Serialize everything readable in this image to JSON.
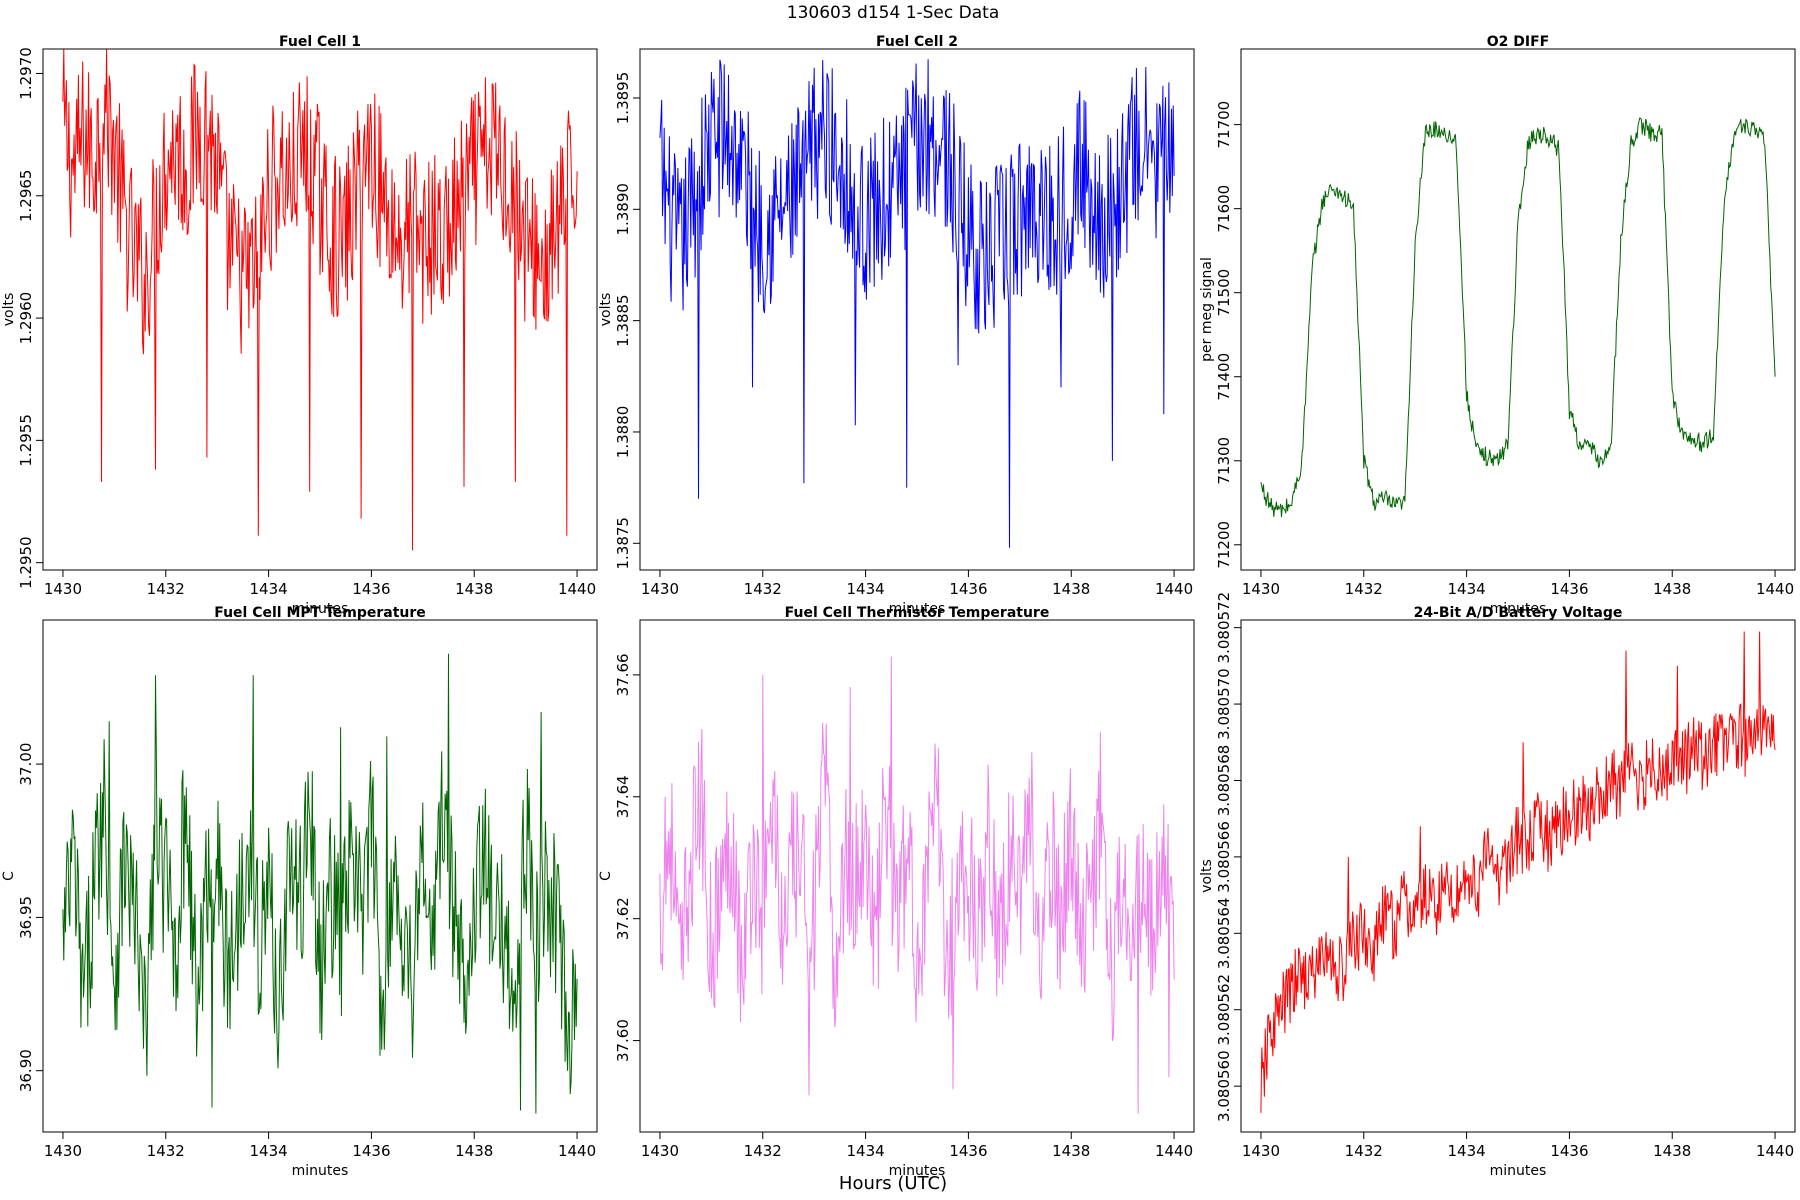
{
  "suptitle": "130603   d154   1-Sec Data",
  "footer": "Hours (UTC)",
  "chart_data": [
    {
      "type": "line",
      "title": "Fuel Cell 1",
      "xlabel": "minutes",
      "ylabel": "volts",
      "color": "#ff0000",
      "xlim": [
        1430,
        1440
      ],
      "ylim": [
        1.29497,
        1.2971
      ],
      "xticks": [
        "1430",
        "1432",
        "1434",
        "1436",
        "1438",
        "1440"
      ],
      "yticks": [
        "1.2950",
        "1.2955",
        "1.2960",
        "1.2965",
        "1.2970"
      ],
      "x": [
        1430.0,
        1430.2,
        1430.4,
        1430.6,
        1430.8,
        1431.0,
        1431.2,
        1431.4,
        1431.6,
        1431.8,
        1432.0,
        1432.2,
        1432.4,
        1432.6,
        1432.8,
        1433.0,
        1433.2,
        1433.4,
        1433.6,
        1433.8,
        1434.0,
        1434.2,
        1434.4,
        1434.6,
        1434.8,
        1435.0,
        1435.2,
        1435.4,
        1435.6,
        1435.8,
        1436.0,
        1436.2,
        1436.4,
        1436.6,
        1436.8,
        1437.0,
        1437.2,
        1437.4,
        1437.6,
        1437.8,
        1438.0,
        1438.2,
        1438.4,
        1438.6,
        1438.8,
        1439.0,
        1439.2,
        1439.4,
        1439.6,
        1439.8,
        1440.0
      ],
      "values": [
        1.2968,
        1.2966,
        1.29675,
        1.29665,
        1.2969,
        1.2967,
        1.2964,
        1.29625,
        1.29615,
        1.2964,
        1.29665,
        1.2967,
        1.2966,
        1.29675,
        1.2968,
        1.2966,
        1.2963,
        1.2962,
        1.29615,
        1.29625,
        1.2965,
        1.2966,
        1.29655,
        1.29665,
        1.2967,
        1.2965,
        1.29635,
        1.2963,
        1.2964,
        1.2966,
        1.2967,
        1.2965,
        1.2964,
        1.2963,
        1.2964,
        1.2963,
        1.29635,
        1.2963,
        1.2964,
        1.2965,
        1.2966,
        1.29665,
        1.2967,
        1.2966,
        1.2965,
        1.2963,
        1.29625,
        1.2962,
        1.29635,
        1.2965,
        1.2966
      ],
      "spikes": [
        [
          1430.75,
          1.29533
        ],
        [
          1431.8,
          1.29538
        ],
        [
          1432.8,
          1.29543
        ],
        [
          1433.8,
          1.29511
        ],
        [
          1434.8,
          1.29529
        ],
        [
          1435.8,
          1.29518
        ],
        [
          1436.8,
          1.29505
        ],
        [
          1437.8,
          1.29531
        ],
        [
          1438.8,
          1.29533
        ],
        [
          1439.8,
          1.29511
        ]
      ]
    },
    {
      "type": "line",
      "title": "Fuel Cell 2",
      "xlabel": "minutes",
      "ylabel": "volts",
      "color": "#0000ff",
      "xlim": [
        1430,
        1440
      ],
      "ylim": [
        1.38738,
        1.38972
      ],
      "xticks": [
        "1430",
        "1432",
        "1434",
        "1436",
        "1438",
        "1440"
      ],
      "yticks": [
        "1.3875",
        "1.3880",
        "1.3885",
        "1.3890",
        "1.3895"
      ],
      "x": [
        1430.0,
        1430.2,
        1430.4,
        1430.6,
        1430.8,
        1431.0,
        1431.2,
        1431.4,
        1431.6,
        1431.8,
        1432.0,
        1432.2,
        1432.4,
        1432.6,
        1432.8,
        1433.0,
        1433.2,
        1433.4,
        1433.6,
        1433.8,
        1434.0,
        1434.2,
        1434.4,
        1434.6,
        1434.8,
        1435.0,
        1435.2,
        1435.4,
        1435.6,
        1435.8,
        1436.0,
        1436.2,
        1436.4,
        1436.6,
        1436.8,
        1437.0,
        1437.2,
        1437.4,
        1437.6,
        1437.8,
        1438.0,
        1438.2,
        1438.4,
        1438.6,
        1438.8,
        1439.0,
        1439.2,
        1439.4,
        1439.6,
        1439.8,
        1440.0
      ],
      "values": [
        1.3892,
        1.38895,
        1.3888,
        1.389,
        1.38915,
        1.3893,
        1.38935,
        1.3893,
        1.3892,
        1.389,
        1.3889,
        1.38895,
        1.389,
        1.38905,
        1.38915,
        1.3893,
        1.38935,
        1.38925,
        1.3892,
        1.389,
        1.38895,
        1.389,
        1.38905,
        1.3891,
        1.3892,
        1.3893,
        1.38935,
        1.3893,
        1.38925,
        1.389,
        1.3889,
        1.3888,
        1.38875,
        1.38885,
        1.3889,
        1.38895,
        1.38905,
        1.389,
        1.38895,
        1.389,
        1.3891,
        1.3892,
        1.38905,
        1.38895,
        1.389,
        1.3891,
        1.38925,
        1.3893,
        1.3892,
        1.38925,
        1.38915
      ],
      "spikes": [
        [
          1430.75,
          1.3877
        ],
        [
          1431.8,
          1.3882
        ],
        [
          1432.8,
          1.38777
        ],
        [
          1433.8,
          1.38803
        ],
        [
          1434.8,
          1.38775
        ],
        [
          1435.8,
          1.3883
        ],
        [
          1436.8,
          1.38748
        ],
        [
          1437.8,
          1.3882
        ],
        [
          1438.8,
          1.38787
        ],
        [
          1439.8,
          1.38808
        ]
      ]
    },
    {
      "type": "line",
      "title": "O2 DIFF",
      "xlabel": "minutes",
      "ylabel": "per meg signal",
      "color": "#006400",
      "xlim": [
        1430,
        1440
      ],
      "ylim": [
        71170,
        71790
      ],
      "xticks": [
        "1430",
        "1432",
        "1434",
        "1436",
        "1438",
        "1440"
      ],
      "yticks": [
        "71200",
        "71300",
        "71400",
        "71500",
        "71600",
        "71700"
      ],
      "x": [
        1430.0,
        1430.2,
        1430.4,
        1430.6,
        1430.8,
        1431.0,
        1431.2,
        1431.4,
        1431.6,
        1431.8,
        1432.0,
        1432.2,
        1432.4,
        1432.6,
        1432.8,
        1433.0,
        1433.2,
        1433.4,
        1433.6,
        1433.8,
        1434.0,
        1434.2,
        1434.4,
        1434.6,
        1434.8,
        1435.0,
        1435.2,
        1435.4,
        1435.6,
        1435.8,
        1436.0,
        1436.2,
        1436.4,
        1436.6,
        1436.8,
        1437.0,
        1437.2,
        1437.4,
        1437.6,
        1437.8,
        1438.0,
        1438.2,
        1438.4,
        1438.6,
        1438.8,
        1439.0,
        1439.2,
        1439.4,
        1439.6,
        1439.8,
        1440.0
      ],
      "values": [
        71270,
        71245,
        71240,
        71250,
        71300,
        71530,
        71610,
        71625,
        71615,
        71600,
        71300,
        71250,
        71255,
        71245,
        71250,
        71560,
        71690,
        71695,
        71690,
        71680,
        71380,
        71310,
        71305,
        71300,
        71320,
        71580,
        71680,
        71690,
        71685,
        71670,
        71360,
        71320,
        71315,
        71300,
        71310,
        71560,
        71680,
        71700,
        71690,
        71690,
        71380,
        71330,
        71325,
        71320,
        71330,
        71600,
        71690,
        71700,
        71695,
        71680,
        71400
      ],
      "spikes": []
    },
    {
      "type": "line",
      "title": "Fuel Cell MPT Temperature",
      "xlabel": "minutes",
      "ylabel": "C",
      "color": "#006400",
      "xlim": [
        1430,
        1440
      ],
      "ylim": [
        36.88,
        37.047
      ],
      "xticks": [
        "1430",
        "1432",
        "1434",
        "1436",
        "1438",
        "1440"
      ],
      "yticks": [
        "36.90",
        "36.95",
        "37.00"
      ],
      "x": [
        1430.0,
        1430.2,
        1430.4,
        1430.6,
        1430.8,
        1431.0,
        1431.2,
        1431.4,
        1431.6,
        1431.8,
        1432.0,
        1432.2,
        1432.4,
        1432.6,
        1432.8,
        1433.0,
        1433.2,
        1433.4,
        1433.6,
        1433.8,
        1434.0,
        1434.2,
        1434.4,
        1434.6,
        1434.8,
        1435.0,
        1435.2,
        1435.4,
        1435.6,
        1435.8,
        1436.0,
        1436.2,
        1436.4,
        1436.6,
        1436.8,
        1437.0,
        1437.2,
        1437.4,
        1437.6,
        1437.8,
        1438.0,
        1438.2,
        1438.4,
        1438.6,
        1438.8,
        1439.0,
        1439.2,
        1439.4,
        1439.6,
        1439.8,
        1440.0
      ],
      "values": [
        36.94,
        36.97,
        36.92,
        36.96,
        36.99,
        36.93,
        36.97,
        36.95,
        36.91,
        36.98,
        36.96,
        36.94,
        36.99,
        36.92,
        36.96,
        36.97,
        36.93,
        36.95,
        36.98,
        36.94,
        36.96,
        36.92,
        36.97,
        36.95,
        36.99,
        36.93,
        36.96,
        36.94,
        36.97,
        36.95,
        36.98,
        36.92,
        36.96,
        36.95,
        36.93,
        36.97,
        36.94,
        36.99,
        36.95,
        36.93,
        36.96,
        36.97,
        36.94,
        36.95,
        36.92,
        36.98,
        36.94,
        36.96,
        36.95,
        36.91,
        36.93
      ],
      "spikes": [
        [
          1431.8,
          37.029
        ],
        [
          1432.9,
          36.888
        ],
        [
          1433.7,
          37.029
        ],
        [
          1435.4,
          37.012
        ],
        [
          1437.5,
          37.036
        ],
        [
          1438.9,
          36.887
        ],
        [
          1439.3,
          37.017
        ],
        [
          1439.2,
          36.886
        ],
        [
          1430.9,
          37.014
        ],
        [
          1436.3,
          37.009
        ]
      ]
    },
    {
      "type": "line",
      "title": "Fuel Cell Thermistor Temperature",
      "xlabel": "minutes",
      "ylabel": "C",
      "color": "#ee82ee",
      "xlim": [
        1430,
        1440
      ],
      "ylim": [
        37.585,
        37.669
      ],
      "xticks": [
        "1430",
        "1432",
        "1434",
        "1436",
        "1438",
        "1440"
      ],
      "yticks": [
        "37.60",
        "37.62",
        "37.64",
        "37.66"
      ],
      "x": [
        1430.0,
        1430.2,
        1430.4,
        1430.6,
        1430.8,
        1431.0,
        1431.2,
        1431.4,
        1431.6,
        1431.8,
        1432.0,
        1432.2,
        1432.4,
        1432.6,
        1432.8,
        1433.0,
        1433.2,
        1433.4,
        1433.6,
        1433.8,
        1434.0,
        1434.2,
        1434.4,
        1434.6,
        1434.8,
        1435.0,
        1435.2,
        1435.4,
        1435.6,
        1435.8,
        1436.0,
        1436.2,
        1436.4,
        1436.6,
        1436.8,
        1437.0,
        1437.2,
        1437.4,
        1437.6,
        1437.8,
        1438.0,
        1438.2,
        1438.4,
        1438.6,
        1438.8,
        1439.0,
        1439.2,
        1439.4,
        1439.6,
        1439.8,
        1440.0
      ],
      "values": [
        37.62,
        37.635,
        37.61,
        37.63,
        37.64,
        37.615,
        37.625,
        37.635,
        37.61,
        37.63,
        37.62,
        37.64,
        37.615,
        37.63,
        37.625,
        37.62,
        37.645,
        37.61,
        37.63,
        37.625,
        37.635,
        37.615,
        37.64,
        37.62,
        37.63,
        37.615,
        37.625,
        37.64,
        37.61,
        37.63,
        37.625,
        37.62,
        37.635,
        37.615,
        37.63,
        37.625,
        37.64,
        37.61,
        37.63,
        37.62,
        37.635,
        37.615,
        37.625,
        37.64,
        37.61,
        37.63,
        37.62,
        37.625,
        37.615,
        37.635,
        37.61
      ],
      "spikes": [
        [
          1434.5,
          37.663
        ],
        [
          1432.0,
          37.66
        ],
        [
          1433.7,
          37.658
        ],
        [
          1439.3,
          37.588
        ],
        [
          1432.9,
          37.591
        ],
        [
          1435.7,
          37.592
        ],
        [
          1430.1,
          37.64
        ],
        [
          1439.9,
          37.594
        ]
      ]
    },
    {
      "type": "line",
      "title": "24-Bit A/D Battery Voltage",
      "xlabel": "minutes",
      "ylabel": "volts",
      "color": "#ff0000",
      "xlim": [
        1430,
        1440
      ],
      "ylim": [
        3.0805588,
        3.0805722
      ],
      "xticks": [
        "1430",
        "1432",
        "1434",
        "1436",
        "1438",
        "1440"
      ],
      "yticks": [
        "3.080560",
        "3.080562",
        "3.080564",
        "3.080566",
        "3.080568",
        "3.080570",
        "3.080572"
      ],
      "x": [
        1430.0,
        1430.2,
        1430.4,
        1430.6,
        1430.8,
        1431.0,
        1431.2,
        1431.4,
        1431.6,
        1431.8,
        1432.0,
        1432.2,
        1432.4,
        1432.6,
        1432.8,
        1433.0,
        1433.2,
        1433.4,
        1433.6,
        1433.8,
        1434.0,
        1434.2,
        1434.4,
        1434.6,
        1434.8,
        1435.0,
        1435.2,
        1435.4,
        1435.6,
        1435.8,
        1436.0,
        1436.2,
        1436.4,
        1436.6,
        1436.8,
        1437.0,
        1437.2,
        1437.4,
        1437.6,
        1437.8,
        1438.0,
        1438.2,
        1438.4,
        1438.6,
        1438.8,
        1439.0,
        1439.2,
        1439.4,
        1439.6,
        1439.8,
        1440.0
      ],
      "values": [
        3.08056,
        3.0805615,
        3.080562,
        3.0805625,
        3.080563,
        3.0805628,
        3.0805635,
        3.0805632,
        3.080563,
        3.0805638,
        3.080564,
        3.0805635,
        3.0805645,
        3.0805642,
        3.0805648,
        3.0805645,
        3.080565,
        3.0805648,
        3.0805652,
        3.080565,
        3.0805655,
        3.0805652,
        3.080566,
        3.0805655,
        3.080566,
        3.0805665,
        3.0805662,
        3.0805668,
        3.0805665,
        3.080567,
        3.0805668,
        3.0805675,
        3.0805672,
        3.0805676,
        3.080568,
        3.0805678,
        3.0805682,
        3.080568,
        3.0805684,
        3.0805682,
        3.0805686,
        3.0805684,
        3.0805688,
        3.0805686,
        3.080569,
        3.0805688,
        3.0805692,
        3.080569,
        3.0805694,
        3.0805692,
        3.0805688
      ],
      "spikes": [
        [
          1430.0,
          3.0805593
        ],
        [
          1431.7,
          3.080566
        ],
        [
          1433.1,
          3.0805668
        ],
        [
          1435.1,
          3.080569
        ],
        [
          1437.1,
          3.0805714
        ],
        [
          1438.1,
          3.080571
        ],
        [
          1439.4,
          3.0805719
        ],
        [
          1439.7,
          3.0805719
        ],
        [
          1437.6,
          3.0805679
        ]
      ]
    }
  ]
}
